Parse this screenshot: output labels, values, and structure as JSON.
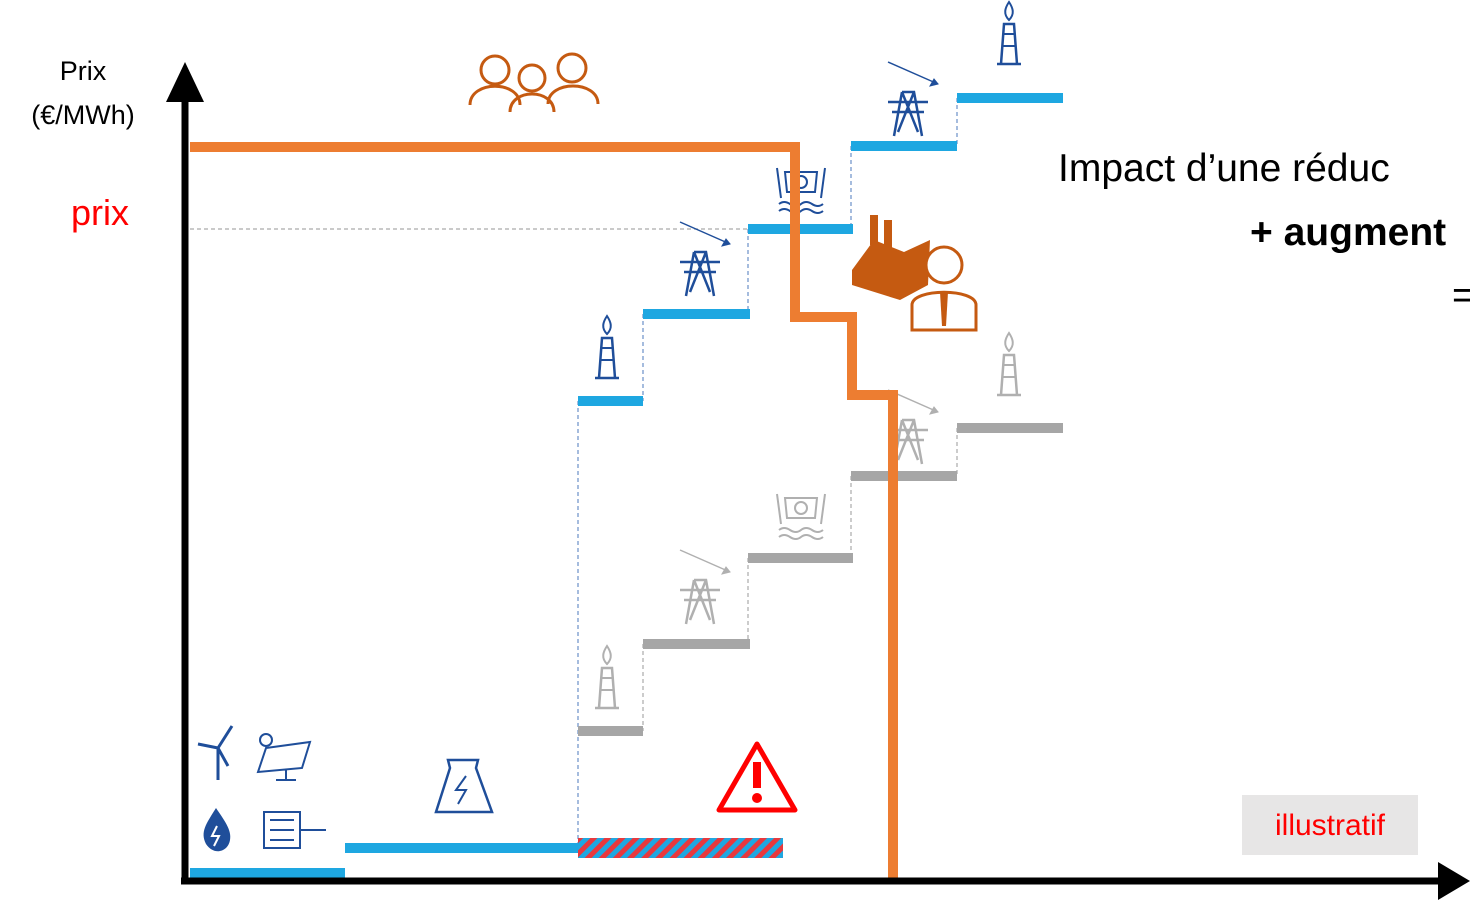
{
  "axis": {
    "y_label_line1": "Prix",
    "y_label_line2": "(€/MWh)",
    "price_marker": "prix"
  },
  "annotation": {
    "line1": "Impact d’une réduc",
    "line2": "+ augment",
    "line3": "="
  },
  "badge": "illustratif"
}
